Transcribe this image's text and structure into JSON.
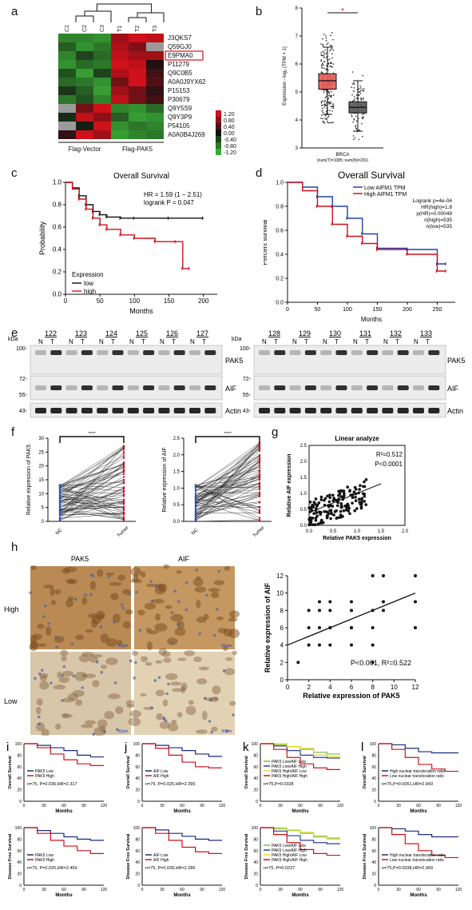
{
  "panel_labels": {
    "a": "a",
    "b": "b",
    "c": "c",
    "d": "d",
    "e": "e",
    "f": "f",
    "g": "g",
    "h": "h",
    "i": "i",
    "j": "j",
    "k": "k",
    "l": "l"
  },
  "heatmap": {
    "columns": [
      "C1",
      "C2",
      "C3",
      "T1",
      "T2",
      "T3"
    ],
    "rows": [
      "J3QKS7",
      "Q59GJ0",
      "E9PMA0",
      "P11279",
      "Q9C0B5",
      "A0A0J9YX62",
      "P15153",
      "P30679",
      "Q9Y5S9",
      "Q9Y3P9",
      "P54105",
      "A0A0B4J269"
    ],
    "highlight_row": "E9PMA0",
    "group_labels": [
      "Flag-Vector",
      "Flag-PAK5"
    ],
    "scale_labels": [
      "1.20",
      "0.80",
      "0.40",
      "0.00",
      "-0.40",
      "-0.80",
      "-1.20"
    ],
    "colors": {
      "high": "#d0101a",
      "mid": "#111111",
      "low": "#3aaa35",
      "na": "#9a9a9a"
    },
    "values": [
      [
        -0.9,
        -0.9,
        -1.0,
        0.9,
        1.2,
        1.1
      ],
      [
        -0.6,
        -1.0,
        -0.8,
        1.0,
        0.7,
        "na"
      ],
      [
        -0.9,
        -0.4,
        -0.7,
        1.1,
        0.9,
        0.9
      ],
      [
        -1.0,
        -0.7,
        -0.8,
        1.2,
        1.1,
        0.1
      ],
      [
        -0.5,
        -1.1,
        -0.4,
        1.0,
        1.2,
        0.3
      ],
      [
        -0.7,
        -0.8,
        -1.0,
        0.6,
        1.2,
        0.4
      ],
      [
        -0.3,
        -0.6,
        -1.1,
        0.9,
        0.6,
        0.2
      ],
      [
        -0.8,
        -0.5,
        -0.9,
        1.1,
        0.6,
        0.3
      ],
      [
        "na",
        0.6,
        1.2,
        -0.9,
        -1.0,
        -0.7
      ],
      [
        -0.2,
        1.1,
        0.8,
        -0.6,
        -1.1,
        -1.0
      ],
      [
        "na",
        -0.1,
        1.2,
        -1.0,
        -0.8,
        -0.9
      ],
      [
        0.2,
        1.2,
        0.9,
        -1.1,
        -0.9,
        -0.8
      ]
    ]
  },
  "panel_b": {
    "chart_data": {
      "type": "box",
      "title": "",
      "ylabel": "Expression - log₂ (TPM + 1)",
      "yticks": [
        "3",
        "4",
        "5",
        "6",
        "7",
        "8"
      ],
      "ylim": [
        3,
        8
      ],
      "xlabel": "BRCA",
      "subtitle": "(num(T)=1085; num(N)=291)",
      "significance": "*",
      "series": [
        {
          "name": "T",
          "color": "#e85a5a",
          "q1": 5.1,
          "median": 5.4,
          "q3": 5.65,
          "whisker_low": 4.2,
          "whisker_high": 6.6
        },
        {
          "name": "N",
          "color": "#555555",
          "q1": 4.25,
          "median": 4.45,
          "q3": 4.65,
          "whisker_low": 3.6,
          "whisker_high": 5.4
        }
      ]
    }
  },
  "panel_c": {
    "chart_data": {
      "type": "line",
      "title": "Overall Survival",
      "xlabel": "Months",
      "ylabel": "Probability",
      "xticks": [
        "0",
        "50",
        "100",
        "150",
        "200"
      ],
      "yticks": [
        "0.0",
        "0.2",
        "0.4",
        "0.6",
        "0.8",
        "1.0"
      ],
      "xlim": [
        0,
        220
      ],
      "ylim": [
        0,
        1
      ],
      "annotations": [
        "HR = 1.59 (1 − 2.51)",
        "logrank P = 0.047"
      ],
      "legend_title": "Expression",
      "series": [
        {
          "name": "low",
          "color": "#111111",
          "x": [
            0,
            10,
            20,
            30,
            40,
            50,
            60,
            80,
            100,
            150,
            200
          ],
          "y": [
            1.0,
            0.95,
            0.88,
            0.8,
            0.74,
            0.71,
            0.69,
            0.68,
            0.68,
            0.68,
            0.68
          ]
        },
        {
          "name": "high",
          "color": "#d0101a",
          "x": [
            0,
            10,
            20,
            30,
            40,
            50,
            60,
            80,
            100,
            130,
            160,
            170,
            180
          ],
          "y": [
            1.0,
            0.94,
            0.85,
            0.76,
            0.68,
            0.62,
            0.58,
            0.53,
            0.5,
            0.47,
            0.47,
            0.23,
            0.23
          ]
        }
      ]
    }
  },
  "panel_d": {
    "chart_data": {
      "type": "line",
      "title": "Overall Survival",
      "xlabel": "Months",
      "ylabel": "Percent survival",
      "xticks": [
        "0",
        "50",
        "100",
        "150",
        "200",
        "250"
      ],
      "yticks": [
        "0.0",
        "0.2",
        "0.4",
        "0.6",
        "0.8",
        "1.0"
      ],
      "xlim": [
        0,
        280
      ],
      "ylim": [
        0,
        1
      ],
      "annotations": [
        "Logrank p=4e-04",
        "HR(high)=1.8",
        "p(HR)=0.00049",
        "n(high)=535",
        "n(low)=535"
      ],
      "series": [
        {
          "name": "Low AIFM1 TPM",
          "color": "#2244aa",
          "x": [
            0,
            25,
            50,
            75,
            100,
            125,
            150,
            200,
            250,
            265
          ],
          "y": [
            1.0,
            0.96,
            0.88,
            0.8,
            0.7,
            0.57,
            0.45,
            0.44,
            0.32,
            0.32
          ]
        },
        {
          "name": "High AIFM1 TPM",
          "color": "#d0101a",
          "x": [
            0,
            25,
            50,
            75,
            100,
            125,
            150,
            200,
            250,
            265
          ],
          "y": [
            1.0,
            0.93,
            0.8,
            0.65,
            0.55,
            0.49,
            0.44,
            0.4,
            0.26,
            0.26
          ]
        }
      ]
    }
  },
  "panel_e": {
    "kda_label": "kDa",
    "left": {
      "samples": [
        "122",
        "123",
        "124",
        "125",
        "126",
        "127"
      ],
      "kda": [
        "100-",
        "72-",
        "55-",
        "43-"
      ]
    },
    "right": {
      "samples": [
        "128",
        "129",
        "130",
        "131",
        "132",
        "133"
      ],
      "kda": [
        "100-",
        "72-",
        "55-",
        "43-"
      ]
    },
    "lane_letters": [
      "N",
      "T"
    ],
    "bands": [
      "PAK5",
      "AIF",
      "Actin"
    ]
  },
  "panel_f": {
    "left": {
      "ylabel": "Relative expression of PAK5",
      "yticks": [
        "0",
        "5",
        "10",
        "15",
        "20",
        "25",
        "30"
      ],
      "xticks": [
        "NC",
        "Tumor"
      ],
      "significance": "****"
    },
    "right": {
      "ylabel": "Relative expression of AIF",
      "yticks": [
        "0.0",
        "0.5",
        "1.0",
        "1.5",
        "2.0",
        "2.5"
      ],
      "xticks": [
        "NC",
        "Tumor"
      ],
      "significance": "****"
    }
  },
  "panel_g": {
    "chart_data": {
      "type": "scatter",
      "title": "Linear analyze",
      "xlabel": "Relative PAK5 expression",
      "ylabel": "Relative AIF expression",
      "xticks": [
        "0.0",
        "0.5",
        "1.0",
        "1.5",
        "2.0"
      ],
      "yticks": [
        "0.0",
        "0.5",
        "1.0",
        "1.5",
        "2.0",
        "2.5"
      ],
      "xlim": [
        0,
        2.0
      ],
      "ylim": [
        0,
        2.5
      ],
      "annotations": [
        "R²=0.512",
        "P<0.0001"
      ],
      "fit": {
        "x": [
          0,
          1.5
        ],
        "y": [
          0.4,
          1.3
        ]
      }
    }
  },
  "panel_h": {
    "column_labels": [
      "PAK5",
      "AIF"
    ],
    "row_labels": [
      "High",
      "Low"
    ],
    "scale_bar": "50μm",
    "chart_data": {
      "type": "scatter",
      "xlabel": "Relative expression of PAK5",
      "ylabel": "Relative expression of AIF",
      "xticks": [
        "0",
        "2",
        "4",
        "6",
        "8",
        "10",
        "12"
      ],
      "yticks": [
        "0",
        "2",
        "4",
        "6",
        "8",
        "10",
        "12"
      ],
      "xlim": [
        0,
        12
      ],
      "ylim": [
        0,
        12
      ],
      "annotation": "P<0.001, R²=0.522",
      "points": {
        "x": [
          1,
          2,
          2,
          3,
          3,
          3,
          4,
          4,
          4,
          4,
          6,
          6,
          6,
          6,
          8,
          8,
          8,
          8,
          9,
          9,
          12,
          12,
          12,
          2,
          3,
          4,
          6,
          8,
          9
        ],
        "y": [
          2,
          4,
          6,
          4,
          6,
          8,
          4,
          6,
          8,
          9,
          4,
          6,
          8,
          9,
          2,
          4,
          8,
          12,
          9,
          12,
          6,
          9,
          12,
          8,
          9,
          6,
          6,
          6,
          8
        ]
      },
      "fit": {
        "x": [
          0,
          12
        ],
        "y": [
          4,
          10
        ]
      }
    }
  },
  "panel_km": [
    {
      "key": "i",
      "top_ylabel": "Overall Survival",
      "bottom_ylabel": "Disease Free Survival",
      "xlabel": "Months",
      "xticks": [
        "0",
        "30",
        "60",
        "90",
        "120"
      ],
      "yticks": [
        "0",
        "20",
        "40",
        "60",
        "80",
        "100"
      ],
      "top_legend": [
        "PAK5 Low",
        "PAK5 High"
      ],
      "top_stat": "n=75, P=0.036,HR=2.317",
      "bottom_legend": [
        "PAK5 Low",
        "PAK5 High"
      ],
      "bottom_stat": "n=75, P=0.020,HR=2.459",
      "colors": [
        "#1a2a7a",
        "#d0101a"
      ],
      "top_series": [
        {
          "x": [
            0,
            20,
            40,
            60,
            80,
            100,
            120
          ],
          "y": [
            100,
            97,
            93,
            88,
            80,
            77,
            77
          ]
        },
        {
          "x": [
            0,
            20,
            40,
            60,
            80,
            100,
            120
          ],
          "y": [
            100,
            93,
            82,
            72,
            65,
            62,
            62
          ]
        }
      ],
      "bottom_series": [
        {
          "x": [
            0,
            20,
            40,
            60,
            80,
            100,
            120
          ],
          "y": [
            100,
            95,
            90,
            84,
            80,
            78,
            78
          ]
        },
        {
          "x": [
            0,
            20,
            40,
            60,
            80,
            100,
            120
          ],
          "y": [
            100,
            90,
            78,
            68,
            60,
            55,
            55
          ]
        }
      ]
    },
    {
      "key": "j",
      "top_ylabel": "Overall Survival",
      "bottom_ylabel": "Disease Free Survival",
      "xlabel": "Months",
      "xticks": [
        "0",
        "30",
        "60",
        "90",
        "120"
      ],
      "yticks": [
        "0",
        "20",
        "40",
        "60",
        "80",
        "100"
      ],
      "top_legend": [
        "AIF Low",
        "AIF High"
      ],
      "top_stat": "n=75, P=0.025,HR=2.395",
      "bottom_legend": [
        "AIF Low",
        "AIF High"
      ],
      "bottom_stat": "n=75, P=0.028,HR=2.286",
      "colors": [
        "#1a2a7a",
        "#d0101a"
      ],
      "top_series": [
        {
          "x": [
            0,
            20,
            40,
            60,
            80,
            100,
            120
          ],
          "y": [
            100,
            97,
            93,
            88,
            82,
            78,
            78
          ]
        },
        {
          "x": [
            0,
            20,
            40,
            60,
            80,
            100,
            120
          ],
          "y": [
            100,
            92,
            80,
            68,
            60,
            58,
            58
          ]
        }
      ],
      "bottom_series": [
        {
          "x": [
            0,
            20,
            40,
            60,
            80,
            100,
            120
          ],
          "y": [
            100,
            96,
            90,
            85,
            80,
            78,
            78
          ]
        },
        {
          "x": [
            0,
            20,
            40,
            60,
            80,
            100,
            120
          ],
          "y": [
            100,
            90,
            78,
            66,
            58,
            55,
            55
          ]
        }
      ]
    },
    {
      "key": "k",
      "top_ylabel": "Overall Survival",
      "bottom_ylabel": "Disease Free Survival",
      "xlabel": "Months",
      "xticks": [
        "0",
        "30",
        "60",
        "90",
        "120"
      ],
      "yticks": [
        "0",
        "20",
        "40",
        "60",
        "80",
        "100"
      ],
      "top_legend": [
        "PAK5 Low/AIF Low",
        "PAK5 Low/AIF High",
        "PAK5 High/AIF Low",
        "PAK5 High/AIF High"
      ],
      "top_stat": "n=75,P=0.0328",
      "bottom_legend": [
        "PAK5 Low/AIF Low",
        "PAK5 Low/AIF High",
        "PAK5 High/AIF Low",
        "PAK5 High/AIF High"
      ],
      "bottom_stat": "n=75, P=0.0237",
      "colors": [
        "#7ac143",
        "#2a3fa0",
        "#e8d82a",
        "#d0101a"
      ],
      "top_series": [
        {
          "x": [
            0,
            20,
            40,
            60,
            80,
            100,
            120
          ],
          "y": [
            100,
            98,
            95,
            90,
            85,
            82,
            82
          ]
        },
        {
          "x": [
            0,
            20,
            40,
            60,
            80,
            100,
            120
          ],
          "y": [
            100,
            96,
            88,
            80,
            76,
            75,
            75
          ]
        },
        {
          "x": [
            0,
            20,
            40,
            60,
            80,
            100,
            120
          ],
          "y": [
            100,
            100,
            95,
            92,
            80,
            78,
            78
          ]
        },
        {
          "x": [
            0,
            20,
            40,
            60,
            80,
            100,
            120
          ],
          "y": [
            100,
            90,
            76,
            65,
            58,
            55,
            55
          ]
        }
      ],
      "bottom_series": [
        {
          "x": [
            0,
            20,
            40,
            60,
            80,
            100,
            120
          ],
          "y": [
            100,
            98,
            95,
            90,
            84,
            82,
            82
          ]
        },
        {
          "x": [
            0,
            20,
            40,
            60,
            80,
            100,
            120
          ],
          "y": [
            100,
            94,
            86,
            78,
            74,
            72,
            72
          ]
        },
        {
          "x": [
            0,
            20,
            40,
            60,
            80,
            100,
            120
          ],
          "y": [
            100,
            100,
            96,
            92,
            86,
            80,
            80
          ]
        },
        {
          "x": [
            0,
            20,
            40,
            60,
            80,
            100,
            120
          ],
          "y": [
            100,
            88,
            74,
            62,
            55,
            52,
            52
          ]
        }
      ]
    },
    {
      "key": "l",
      "top_ylabel": "Overall Survival",
      "bottom_ylabel": "Disease Free Survival",
      "xlabel": "Months",
      "xticks": [
        "0",
        "30",
        "60",
        "90",
        "120"
      ],
      "yticks": [
        "0",
        "20",
        "40",
        "60",
        "80",
        "100"
      ],
      "top_legend": [
        "High nuclear translocation ratio",
        "Low nuclear translocation ratio"
      ],
      "top_stat": "n=75,P=0.0051,HR=2.843",
      "bottom_legend": [
        "High nuclear translocation ratio",
        "Low nuclear translocation ratio"
      ],
      "bottom_stat": "n=75,P=0.0038,HR=2.969",
      "colors": [
        "#1a2a7a",
        "#d0101a"
      ],
      "top_series": [
        {
          "x": [
            0,
            20,
            40,
            60,
            80,
            100,
            120
          ],
          "y": [
            100,
            98,
            92,
            86,
            84,
            84,
            84
          ]
        },
        {
          "x": [
            0,
            20,
            40,
            60,
            80,
            100,
            120
          ],
          "y": [
            100,
            90,
            76,
            64,
            56,
            52,
            52
          ]
        }
      ],
      "bottom_series": [
        {
          "x": [
            0,
            20,
            40,
            60,
            80,
            100,
            120
          ],
          "y": [
            100,
            98,
            94,
            88,
            84,
            84,
            84
          ]
        },
        {
          "x": [
            0,
            20,
            40,
            60,
            80,
            100,
            120
          ],
          "y": [
            100,
            88,
            72,
            60,
            52,
            48,
            48
          ]
        }
      ]
    }
  ]
}
